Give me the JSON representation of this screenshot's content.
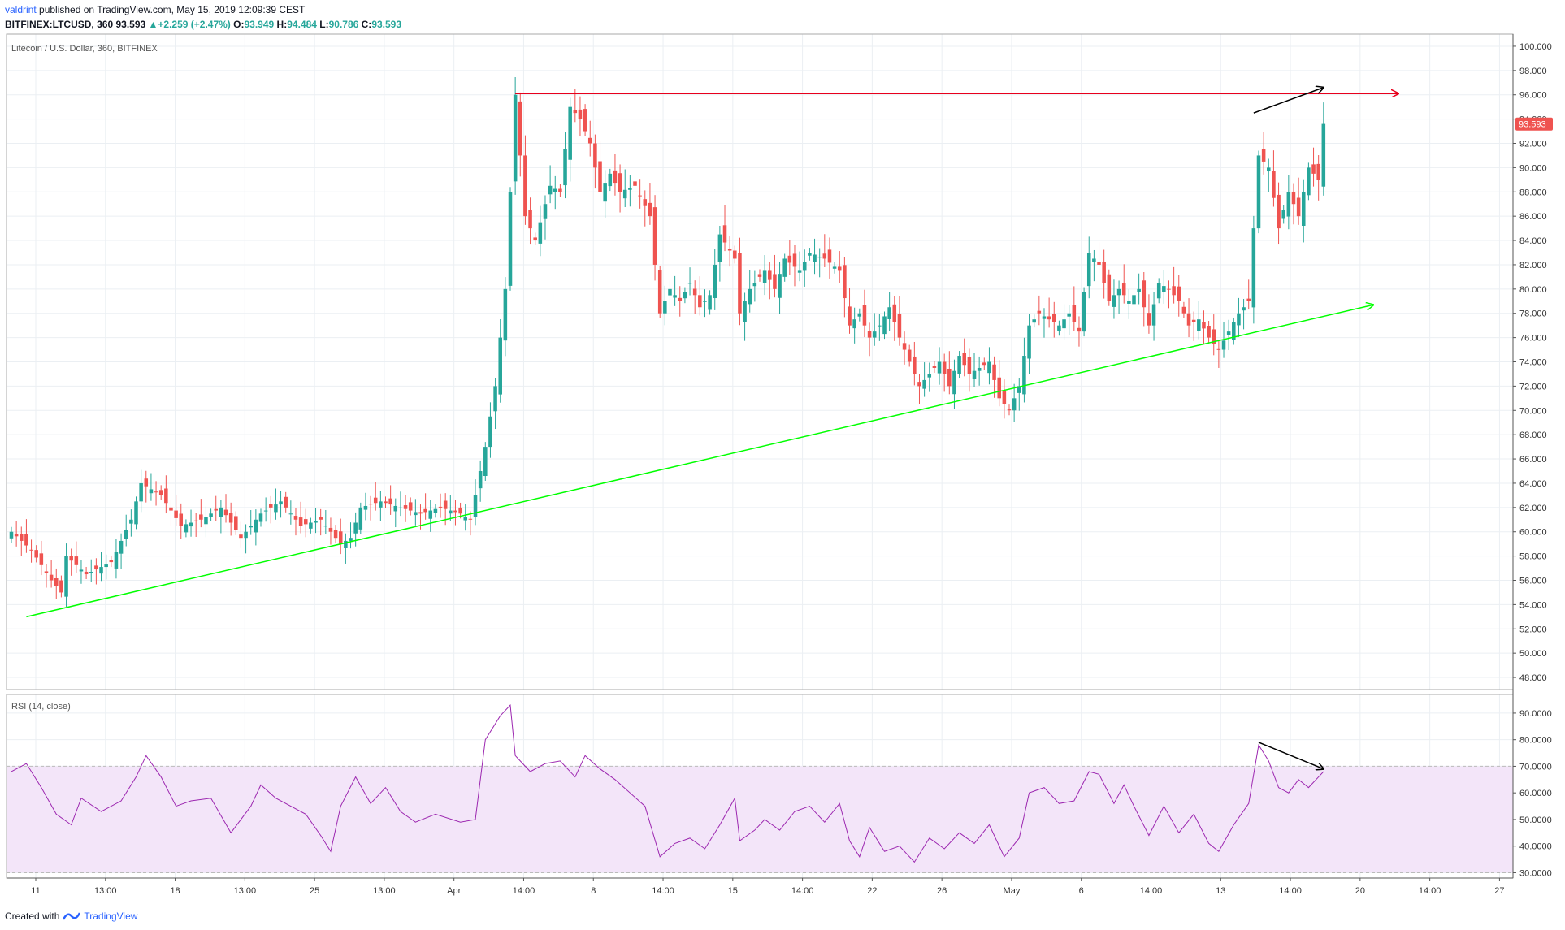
{
  "header": {
    "author": "valdrint",
    "published_text": "published on TradingView.com, May 15, 2019 12:09:39 CEST",
    "symbol": "BITFINEX:LTCUSD, 360",
    "last": "93.593",
    "change_arrow": "▲",
    "change": "+2.259 (+2.47%)",
    "o_label": "O:",
    "o": "93.949",
    "h_label": "H:",
    "h": "94.484",
    "l_label": "L:",
    "l": "90.786",
    "c_label": "C:",
    "c": "93.593"
  },
  "footer": {
    "created_with": "Created with",
    "brand": "TradingView"
  },
  "colors": {
    "up": "#26a69a",
    "down": "#ef5350",
    "resistance": "#e8001c",
    "support": "#00ff00",
    "rsi_line": "#9c27b0",
    "rsi_band": "#f3e5f9",
    "grid": "#ebeff3",
    "price_tag": "#ef5350"
  },
  "chart_data": [
    {
      "type": "candlestick",
      "title": "Litecoin / U.S. Dollar, 360, BITFINEX",
      "ylim": [
        47,
        101
      ],
      "y_ticks": [
        "100.000",
        "98.000",
        "96.000",
        "94.000",
        "92.000",
        "90.000",
        "88.000",
        "86.000",
        "84.000",
        "82.000",
        "80.000",
        "78.000",
        "76.000",
        "74.000",
        "72.000",
        "70.000",
        "68.000",
        "66.000",
        "64.000",
        "62.000",
        "60.000",
        "58.000",
        "56.000",
        "54.000",
        "52.000",
        "50.000",
        "48.000"
      ],
      "last_price_label": "93.593",
      "x_ticks": [
        "11",
        "13:00",
        "18",
        "13:00",
        "25",
        "13:00",
        "Apr",
        "14:00",
        "8",
        "14:00",
        "15",
        "14:00",
        "22",
        "26",
        "May",
        "6",
        "14:00",
        "13",
        "14:00",
        "20",
        "14:00",
        "27"
      ],
      "close_path": [
        [
          0,
          60.0
        ],
        [
          4,
          58.5
        ],
        [
          8,
          56.0
        ],
        [
          10,
          55.0
        ],
        [
          11,
          58.0
        ],
        [
          15,
          56.5
        ],
        [
          20,
          57.5
        ],
        [
          24,
          61.0
        ],
        [
          26,
          64.0
        ],
        [
          30,
          63.0
        ],
        [
          34,
          60.5
        ],
        [
          38,
          61.0
        ],
        [
          42,
          62.0
        ],
        [
          46,
          59.5
        ],
        [
          50,
          61.5
        ],
        [
          54,
          62.5
        ],
        [
          58,
          60.5
        ],
        [
          62,
          61.0
        ],
        [
          66,
          59.0
        ],
        [
          68,
          59.5
        ],
        [
          70,
          62.0
        ],
        [
          74,
          62.5
        ],
        [
          78,
          62.0
        ],
        [
          82,
          61.5
        ],
        [
          86,
          62.0
        ],
        [
          90,
          61.5
        ],
        [
          92,
          61.0
        ],
        [
          95,
          67.0
        ],
        [
          97,
          72.0
        ],
        [
          99,
          80.0
        ],
        [
          101,
          96.0
        ],
        [
          103,
          86.0
        ],
        [
          105,
          84.0
        ],
        [
          108,
          88.5
        ],
        [
          110,
          88.0
        ],
        [
          112,
          95.0
        ],
        [
          114,
          94.0
        ],
        [
          116,
          92.0
        ],
        [
          118,
          88.0
        ],
        [
          120,
          89.5
        ],
        [
          122,
          88.0
        ],
        [
          125,
          88.5
        ],
        [
          128,
          86.0
        ],
        [
          130,
          78.0
        ],
        [
          132,
          80.0
        ],
        [
          134,
          79.0
        ],
        [
          136,
          80.5
        ],
        [
          138,
          78.5
        ],
        [
          140,
          79.5
        ],
        [
          142,
          84.5
        ],
        [
          145,
          82.5
        ],
        [
          146,
          78.0
        ],
        [
          148,
          80.0
        ],
        [
          151,
          81.5
        ],
        [
          153,
          80.0
        ],
        [
          155,
          82.5
        ],
        [
          158,
          81.5
        ],
        [
          160,
          83.0
        ],
        [
          163,
          82.5
        ],
        [
          166,
          81.5
        ],
        [
          168,
          77.0
        ],
        [
          170,
          78.0
        ],
        [
          172,
          76.0
        ],
        [
          174,
          77.0
        ],
        [
          176,
          78.5
        ],
        [
          178,
          76.0
        ],
        [
          180,
          74.0
        ],
        [
          182,
          72.0
        ],
        [
          184,
          73.0
        ],
        [
          186,
          74.0
        ],
        [
          188,
          72.0
        ],
        [
          190,
          74.5
        ],
        [
          192,
          73.0
        ],
        [
          196,
          74.0
        ],
        [
          198,
          71.0
        ],
        [
          200,
          70.0
        ],
        [
          202,
          72.0
        ],
        [
          204,
          77.0
        ],
        [
          206,
          78.0
        ],
        [
          208,
          77.5
        ],
        [
          210,
          77.0
        ],
        [
          212,
          78.0
        ],
        [
          214,
          76.5
        ],
        [
          216,
          83.0
        ],
        [
          218,
          82.0
        ],
        [
          220,
          79.0
        ],
        [
          222,
          80.0
        ],
        [
          224,
          79.0
        ],
        [
          226,
          80.0
        ],
        [
          228,
          77.0
        ],
        [
          230,
          80.5
        ],
        [
          232,
          80.0
        ],
        [
          234,
          79.0
        ],
        [
          236,
          77.0
        ],
        [
          238,
          77.5
        ],
        [
          240,
          76.0
        ],
        [
          242,
          75.0
        ],
        [
          244,
          76.5
        ],
        [
          246,
          78.0
        ],
        [
          248,
          79.0
        ],
        [
          250,
          91.0
        ],
        [
          252,
          90.0
        ],
        [
          254,
          85.0
        ],
        [
          256,
          88.0
        ],
        [
          258,
          86.0
        ],
        [
          260,
          90.0
        ],
        [
          262,
          89.0
        ],
        [
          263,
          93.6
        ]
      ],
      "resistance_line": {
        "from": [
          101,
          96.1
        ],
        "to": [
          278,
          96.1
        ]
      },
      "support_line": {
        "from": [
          3,
          53.0
        ],
        "to": [
          273,
          78.7
        ]
      },
      "price_divergence_arrow": {
        "from": [
          249,
          94.5
        ],
        "to": [
          263,
          96.6
        ]
      }
    },
    {
      "type": "line",
      "title": "RSI (14, close)",
      "ylim": [
        28,
        97
      ],
      "y_ticks": [
        "90.0000",
        "80.0000",
        "70.0000",
        "60.0000",
        "50.0000",
        "40.0000",
        "30.0000"
      ],
      "band": [
        30,
        70
      ],
      "series": [
        {
          "name": "RSI",
          "points": [
            [
              0,
              68
            ],
            [
              3,
              71
            ],
            [
              6,
              62
            ],
            [
              9,
              52
            ],
            [
              12,
              48
            ],
            [
              14,
              58
            ],
            [
              18,
              53
            ],
            [
              22,
              57
            ],
            [
              25,
              66
            ],
            [
              27,
              74
            ],
            [
              30,
              66
            ],
            [
              33,
              55
            ],
            [
              36,
              57
            ],
            [
              40,
              58
            ],
            [
              44,
              45
            ],
            [
              48,
              55
            ],
            [
              50,
              63
            ],
            [
              53,
              58
            ],
            [
              56,
              55
            ],
            [
              59,
              52
            ],
            [
              62,
              44
            ],
            [
              64,
              38
            ],
            [
              66,
              55
            ],
            [
              69,
              66
            ],
            [
              72,
              56
            ],
            [
              75,
              62
            ],
            [
              78,
              53
            ],
            [
              81,
              49
            ],
            [
              85,
              52
            ],
            [
              90,
              49
            ],
            [
              93,
              50
            ],
            [
              95,
              80
            ],
            [
              98,
              89
            ],
            [
              100,
              93
            ],
            [
              101,
              74
            ],
            [
              104,
              68
            ],
            [
              107,
              71
            ],
            [
              110,
              72
            ],
            [
              113,
              66
            ],
            [
              115,
              74
            ],
            [
              118,
              69
            ],
            [
              121,
              65
            ],
            [
              124,
              60
            ],
            [
              127,
              55
            ],
            [
              130,
              36
            ],
            [
              133,
              41
            ],
            [
              136,
              43
            ],
            [
              139,
              39
            ],
            [
              142,
              48
            ],
            [
              145,
              58
            ],
            [
              146,
              42
            ],
            [
              149,
              46
            ],
            [
              151,
              50
            ],
            [
              154,
              46
            ],
            [
              157,
              53
            ],
            [
              160,
              55
            ],
            [
              163,
              49
            ],
            [
              166,
              56
            ],
            [
              168,
              42
            ],
            [
              170,
              36
            ],
            [
              172,
              47
            ],
            [
              175,
              38
            ],
            [
              178,
              40
            ],
            [
              181,
              34
            ],
            [
              184,
              43
            ],
            [
              187,
              39
            ],
            [
              190,
              45
            ],
            [
              193,
              41
            ],
            [
              196,
              48
            ],
            [
              199,
              36
            ],
            [
              202,
              43
            ],
            [
              204,
              60
            ],
            [
              207,
              62
            ],
            [
              210,
              56
            ],
            [
              213,
              57
            ],
            [
              216,
              68
            ],
            [
              218,
              67
            ],
            [
              221,
              56
            ],
            [
              223,
              63
            ],
            [
              225,
              55
            ],
            [
              228,
              44
            ],
            [
              231,
              55
            ],
            [
              234,
              45
            ],
            [
              237,
              52
            ],
            [
              240,
              41
            ],
            [
              242,
              38
            ],
            [
              245,
              48
            ],
            [
              248,
              56
            ],
            [
              250,
              78
            ],
            [
              252,
              72
            ],
            [
              254,
              62
            ],
            [
              256,
              60
            ],
            [
              258,
              65
            ],
            [
              260,
              62
            ],
            [
              262,
              66
            ],
            [
              263,
              68
            ]
          ]
        }
      ],
      "rsi_divergence_arrow": {
        "from": [
          250,
          79
        ],
        "to": [
          263,
          69
        ]
      }
    }
  ]
}
